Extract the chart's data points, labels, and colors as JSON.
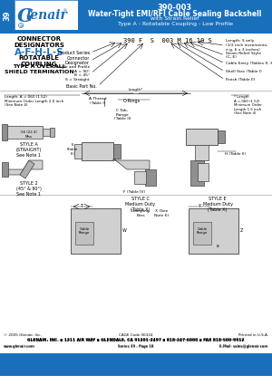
{
  "title_part": "390-003",
  "title_line1": "Water-Tight EMI/RFI Cable Sealing Backshell",
  "title_line2": "with Strain Relief",
  "title_line3": "Type A - Rotatable Coupling - Low Profile",
  "header_bg": "#1a6fba",
  "header_text_color": "#FFFFFF",
  "tab_bg": "#1a6fba",
  "tab_text": "39",
  "logo_color": "#1a6fba",
  "connector_title": "CONNECTOR\nDESIGNATORS",
  "connector_subtitle": "A-F-H-L-S",
  "connector_sub2": "ROTATABLE\nCOUPLING",
  "connector_sub3": "TYPE A OVERALL\nSHIELD TERMINATION",
  "pn_string": "390 F  S  003 M 16 10 S",
  "footer_company": "GLENAIR, INC. ▪ 1211 AIR WAY ▪ GLENDALE, CA 91201-2497 ▪ 818-247-6000 ▪ FAX 818-500-9912",
  "footer_web": "www.glenair.com",
  "footer_series": "Series 39 - Page 18",
  "footer_email": "E-Mail: sales@glenair.com",
  "footer_copyright": "© 2005 Glenair, Inc.",
  "footer_catalog": "CAGE Code 06324",
  "footer_printed": "Printed in U.S.A.",
  "bg_color": "#FFFFFF",
  "blue": "#1a6fba",
  "gray": "#808080",
  "light_gray": "#d0d0d0",
  "dark_gray": "#404040"
}
